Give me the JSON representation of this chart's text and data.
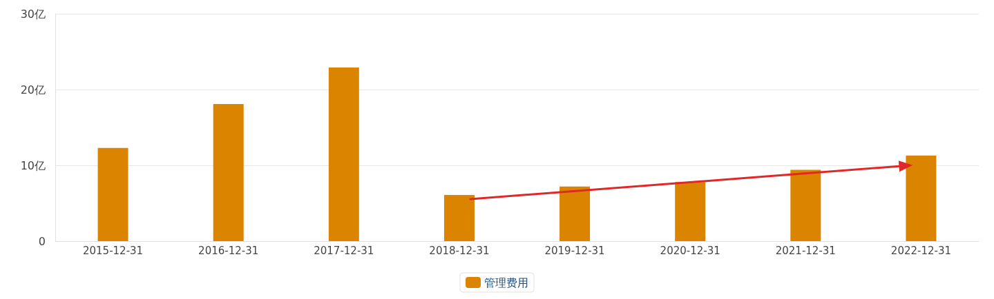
{
  "chart_data": {
    "type": "bar",
    "categories": [
      "2015-12-31",
      "2016-12-31",
      "2017-12-31",
      "2018-12-31",
      "2019-12-31",
      "2020-12-31",
      "2021-12-31",
      "2022-12-31"
    ],
    "series": [
      {
        "name": "管理费用",
        "color": "#db8400",
        "values": [
          12.3,
          18.1,
          22.9,
          6.1,
          7.2,
          7.8,
          9.4,
          11.3
        ]
      }
    ],
    "ylim": [
      0,
      30
    ],
    "yticks": [
      0,
      {
        "value": 10,
        "label": "10亿"
      },
      {
        "value": 20,
        "label": "20亿"
      },
      {
        "value": 30,
        "label": "30亿"
      }
    ],
    "grid": "y",
    "legend": "bottom"
  }
}
